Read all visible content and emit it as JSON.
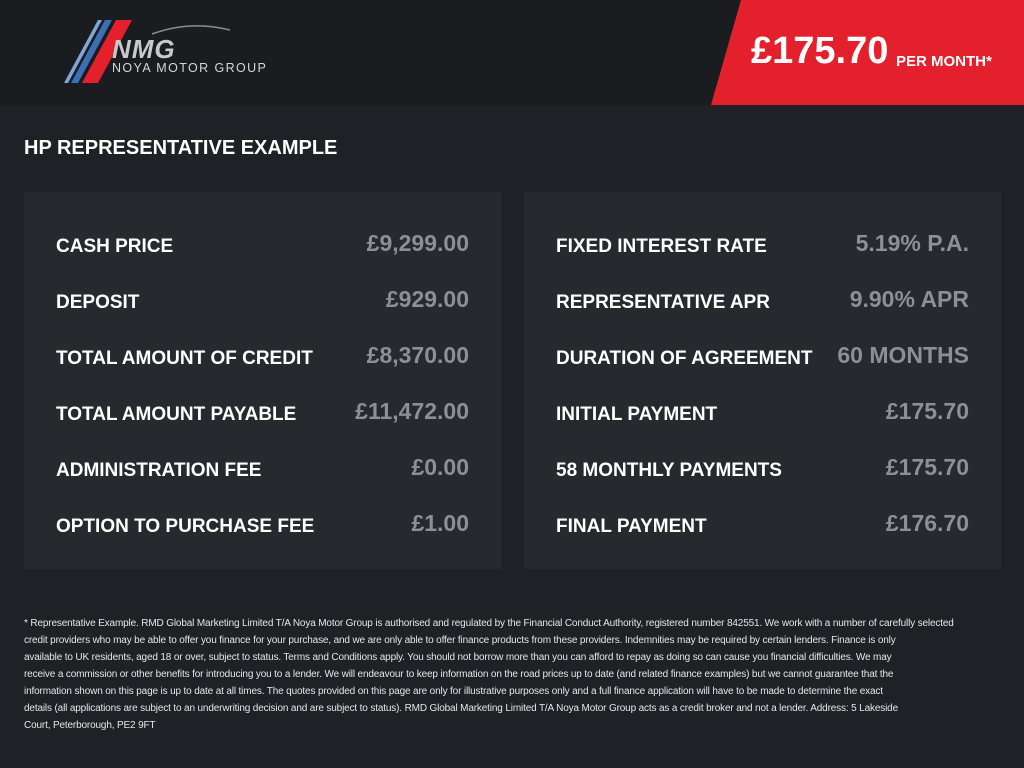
{
  "brand": {
    "logo_text": "NMG",
    "logo_subtitle": "NOYA MOTOR GROUP",
    "colors": {
      "red": "#e4202d",
      "blue": "#3d6fb6",
      "background": "#1f2126"
    }
  },
  "price_banner": {
    "price": "£175.70",
    "suffix": "PER MONTH*"
  },
  "title": "HP REPRESENTATIVE EXAMPLE",
  "left_panel": [
    {
      "label": "CASH PRICE",
      "value": "£9,299.00"
    },
    {
      "label": "DEPOSIT",
      "value": "£929.00"
    },
    {
      "label": "TOTAL AMOUNT OF CREDIT",
      "value": "£8,370.00"
    },
    {
      "label": "TOTAL AMOUNT PAYABLE",
      "value": "£11,472.00"
    },
    {
      "label": "ADMINISTRATION FEE",
      "value": "£0.00"
    },
    {
      "label": "OPTION TO PURCHASE FEE",
      "value": "£1.00"
    }
  ],
  "right_panel": [
    {
      "label": "FIXED INTEREST RATE",
      "value": "5.19% P.A."
    },
    {
      "label": "REPRESENTATIVE APR",
      "value": "9.90% APR"
    },
    {
      "label": "DURATION OF AGREEMENT",
      "value": "60 MONTHS"
    },
    {
      "label": "INITIAL PAYMENT",
      "value": "£175.70"
    },
    {
      "label": "58 MONTHLY PAYMENTS",
      "value": "£175.70"
    },
    {
      "label": "FINAL PAYMENT",
      "value": "£176.70"
    }
  ],
  "disclaimer_lines": [
    "* Representative Example. RMD Global Marketing Limited T/A Noya Motor Group is authorised and regulated by the Financial Conduct Authority, registered number 842551. We work with a number of carefully selected",
    "credit providers who may be able to offer you finance for your purchase, and we are only able to offer finance products from these providers. Indemnities may be required by certain lenders. Finance is only",
    "available to UK residents, aged 18 or over, subject to status. Terms and Conditions apply. You should not borrow more than you can afford to repay as doing so can cause you financial difficulties. We may",
    "receive a commission or other benefits for introducing you to a lender. We will endeavour to keep information on the road prices up to date (and related finance examples) but we cannot guarantee that the",
    "information shown on this page is up to date at all times. The quotes provided on this page are only for illustrative purposes only and a full finance application will have to be made to determine the exact",
    "details (all applications are subject to an underwriting decision and are subject to status). RMD Global Marketing Limited T/A Noya Motor Group acts as a credit broker and not a lender. Address: 5 Lakeside",
    "Court, Peterborough, PE2 9FT"
  ]
}
